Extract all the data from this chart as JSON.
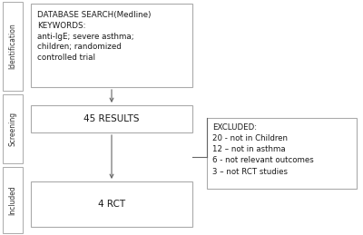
{
  "bg_color": "#ffffff",
  "box_edge_color": "#aaaaaa",
  "box_face_color": "#ffffff",
  "arrow_color": "#666666",
  "text_color": "#1a1a1a",
  "side_label_color": "#333333",
  "box1_text": "DATABASE SEARCH(Medline)\nKEYWORDS:\nanti-IgE; severe asthma;\nchildren; randomized\ncontrolled trial",
  "box2_text": "45 RESULTS",
  "box3_text": "4 RCT",
  "excluded_text": "EXCLUDED:\n20 - not in Children\n12 – not in asthma\n6 - not relevant outcomes\n3 – not RCT studies",
  "label_identification": "Identification",
  "label_screening": "Screening",
  "label_included": "Included",
  "figsize": [
    4.0,
    2.59
  ],
  "dpi": 100
}
